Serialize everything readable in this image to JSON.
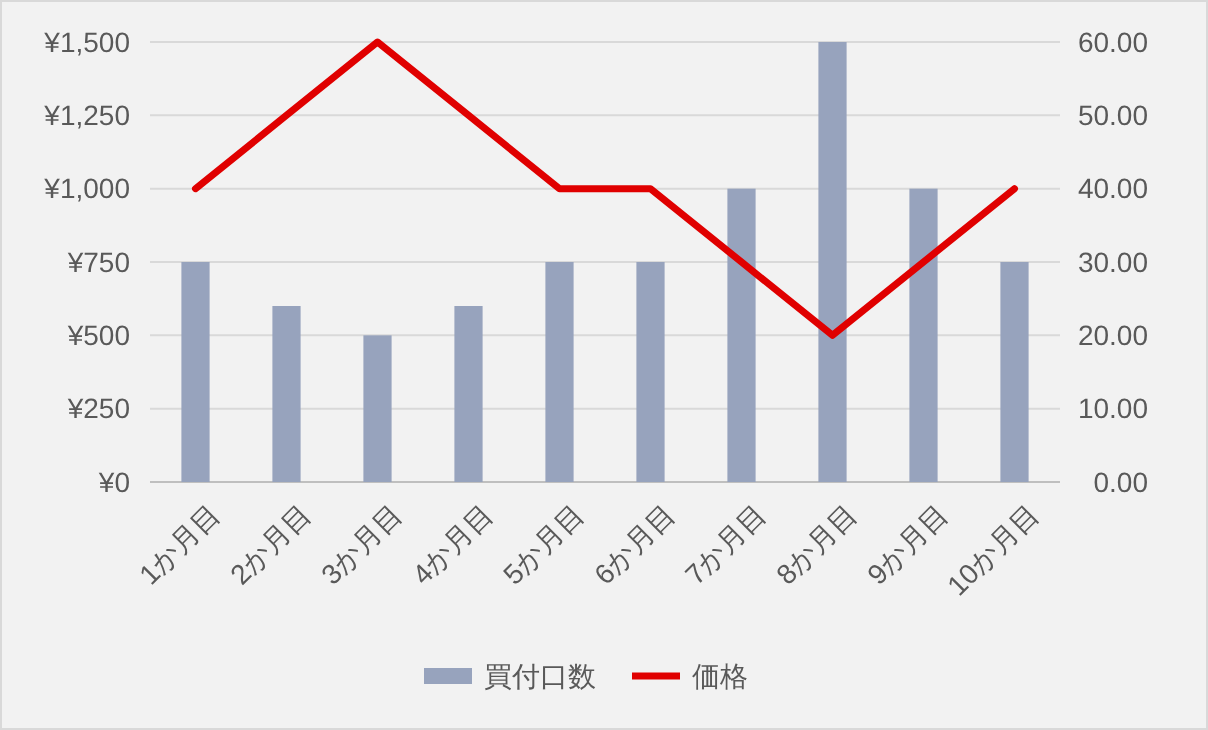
{
  "chart_data": {
    "type": "bar",
    "categories": [
      "1か月目",
      "2か月目",
      "3か月目",
      "4か月目",
      "5か月目",
      "6か月目",
      "7か月目",
      "8か月目",
      "9か月目",
      "10か月目"
    ],
    "series": [
      {
        "name": "買付口数",
        "color": "#97a3bd",
        "values": [
          750,
          600,
          500,
          600,
          750,
          750,
          1000,
          1500,
          1000,
          750
        ]
      },
      {
        "name": "価格",
        "type": "line",
        "axis": "y2",
        "color": "#e00000",
        "values": [
          40,
          50,
          60,
          50,
          40,
          40,
          30,
          20,
          30,
          40
        ]
      }
    ],
    "ylim": [
      0,
      1500
    ],
    "yticks": [
      {
        "value": 0,
        "label": "¥0"
      },
      {
        "value": 250,
        "label": "¥250"
      },
      {
        "value": 500,
        "label": "¥500"
      },
      {
        "value": 750,
        "label": "¥750"
      },
      {
        "value": 1000,
        "label": "¥1,000"
      },
      {
        "value": 1250,
        "label": "¥1,250"
      },
      {
        "value": 1500,
        "label": "¥1,500"
      }
    ],
    "y2lim": [
      0,
      60
    ],
    "y2ticks": [
      {
        "value": 0,
        "label": "0.00"
      },
      {
        "value": 10,
        "label": "10.00"
      },
      {
        "value": 20,
        "label": "20.00"
      },
      {
        "value": 30,
        "label": "30.00"
      },
      {
        "value": 40,
        "label": "40.00"
      },
      {
        "value": 50,
        "label": "50.00"
      },
      {
        "value": 60,
        "label": "60.00"
      }
    ],
    "grid": "y",
    "legend": "bottom",
    "marker": "none",
    "line_style": "solid"
  }
}
